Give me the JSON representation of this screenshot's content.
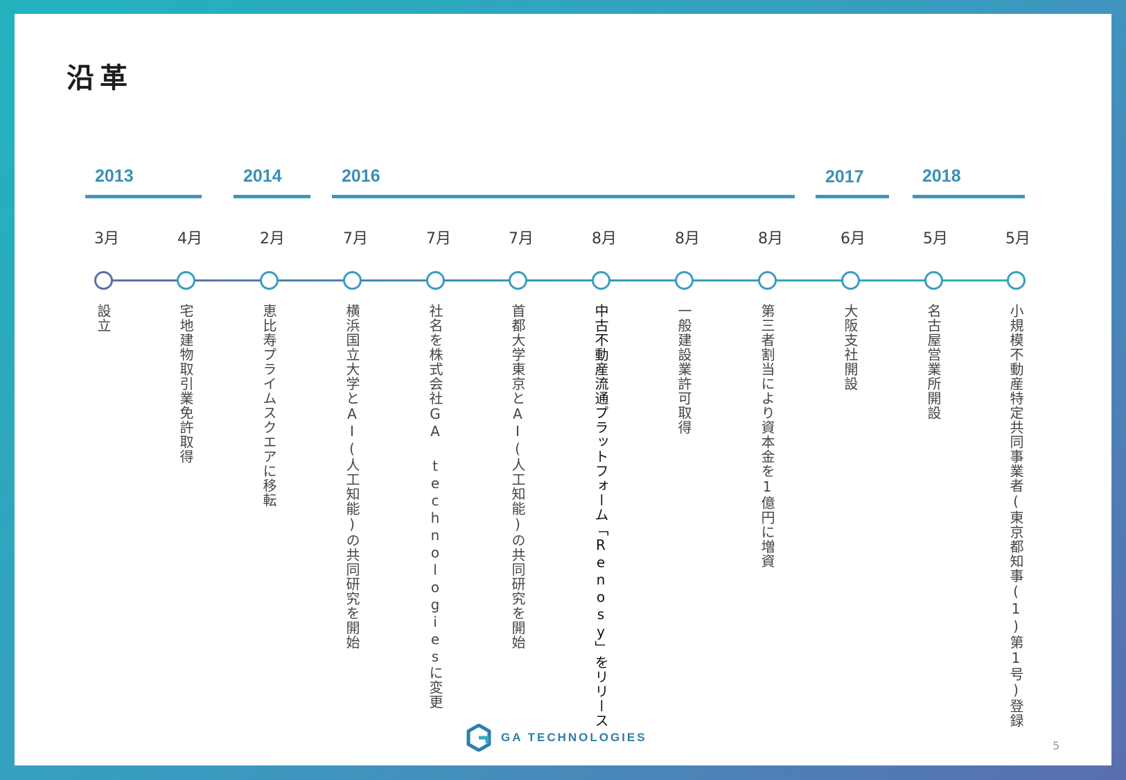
{
  "title": "沿革",
  "years": [
    {
      "label": "2013"
    },
    {
      "label": "2014"
    },
    {
      "label": "2016"
    },
    {
      "label": "2017"
    },
    {
      "label": "2018"
    }
  ],
  "events": [
    {
      "month": "3月",
      "text": "設立"
    },
    {
      "month": "4月",
      "text": "宅地建物取引業免許取得"
    },
    {
      "month": "2月",
      "text": "恵比寿プライムスクエアに移転"
    },
    {
      "month": "7月",
      "text": "横浜国立大学とAI(人工知能)の共同研究を開始"
    },
    {
      "month": "7月",
      "text": "社名を株式会社GA technologiesに変更"
    },
    {
      "month": "7月",
      "text": "首都大学東京とAI(人工知能)の共同研究を開始"
    },
    {
      "month": "8月",
      "text": "中古不動産流通プラットフォーム「Renosy」をリリース"
    },
    {
      "month": "8月",
      "text": "一般建設業許可取得"
    },
    {
      "month": "8月",
      "text": "第三者割当により資本金を1億円に増資"
    },
    {
      "month": "6月",
      "text": "大阪支社開設"
    },
    {
      "month": "5月",
      "text": "名古屋営業所開設"
    },
    {
      "month": "5月",
      "text": "小規模不動産特定共同事業者(東京都知事(1)第1号)登録"
    }
  ],
  "footer": {
    "logo_text": "GA TECHNOLOGIES",
    "page_number": "5"
  },
  "colors": {
    "accent": "#3f97b9",
    "line_start": "#5a6ea8",
    "line_end": "#2fb0b6"
  },
  "icons": {
    "logo": "ga-logo-icon"
  }
}
